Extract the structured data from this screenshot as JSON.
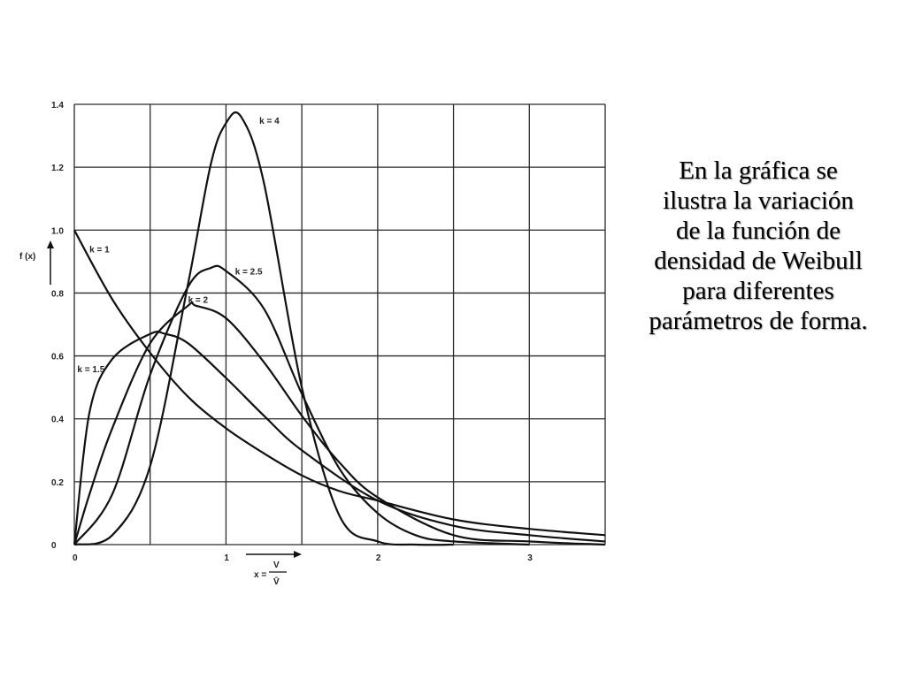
{
  "caption": "En la gráfica se ilustra la variación de la función de densidad de Weibull para diferentes parámetros de forma.",
  "chart_data": {
    "type": "line",
    "title": "",
    "ylabel": "f (x)",
    "xlabel_prefix": "x =",
    "xlabel_num": "V",
    "xlabel_den": "V̄",
    "xlim": [
      0,
      3.5
    ],
    "ylim": [
      0,
      1.4
    ],
    "x_ticks": [
      0,
      1,
      2,
      3
    ],
    "x_tick_labels": [
      "0",
      "1",
      "2",
      "3"
    ],
    "y_ticks": [
      0,
      0.2,
      0.4,
      0.6,
      0.8,
      1.0,
      1.2,
      1.4
    ],
    "y_tick_labels": [
      "0",
      "0.2",
      "0.4",
      "0.6",
      "0.8",
      "1.0",
      "1.2",
      "1.4"
    ],
    "grid": true,
    "series": [
      {
        "name": "k = 1",
        "x": [
          0,
          0.25,
          0.5,
          0.75,
          1.0,
          1.25,
          1.5,
          1.75,
          2.0,
          2.5,
          3.0,
          3.5
        ],
        "y": [
          1.0,
          0.78,
          0.61,
          0.47,
          0.37,
          0.29,
          0.22,
          0.17,
          0.14,
          0.08,
          0.05,
          0.03
        ]
      },
      {
        "name": "k = 1.5",
        "x": [
          0,
          0.1,
          0.25,
          0.5,
          0.6,
          0.75,
          1.0,
          1.25,
          1.5,
          2.0,
          2.5,
          3.0,
          3.5
        ],
        "y": [
          0,
          0.42,
          0.59,
          0.67,
          0.67,
          0.64,
          0.53,
          0.41,
          0.3,
          0.14,
          0.06,
          0.03,
          0.01
        ]
      },
      {
        "name": "k = 2",
        "x": [
          0,
          0.1,
          0.25,
          0.5,
          0.75,
          0.8,
          1.0,
          1.25,
          1.5,
          1.75,
          2.0,
          2.5,
          3.0,
          3.5
        ],
        "y": [
          0,
          0.16,
          0.37,
          0.64,
          0.76,
          0.76,
          0.72,
          0.58,
          0.41,
          0.26,
          0.15,
          0.03,
          0.01,
          0.0
        ]
      },
      {
        "name": "k = 2.5",
        "x": [
          0,
          0.25,
          0.5,
          0.75,
          0.9,
          1.0,
          1.25,
          1.5,
          1.75,
          2.0,
          2.25,
          2.5,
          3.0
        ],
        "y": [
          0,
          0.16,
          0.54,
          0.82,
          0.88,
          0.87,
          0.75,
          0.48,
          0.24,
          0.1,
          0.03,
          0.01,
          0.0
        ]
      },
      {
        "name": "k = 4",
        "x": [
          0,
          0.25,
          0.5,
          0.75,
          0.9,
          1.0,
          1.1,
          1.25,
          1.5,
          1.75,
          2.0,
          2.25,
          2.5
        ],
        "y": [
          0,
          0.03,
          0.25,
          0.83,
          1.21,
          1.34,
          1.36,
          1.15,
          0.5,
          0.09,
          0.01,
          0.0,
          0.0
        ]
      }
    ],
    "annotations": [
      {
        "text": "k = 4",
        "x": 1.22,
        "y": 1.35
      },
      {
        "text": "k = 2.5",
        "x": 1.06,
        "y": 0.87
      },
      {
        "text": "k = 2",
        "x": 0.75,
        "y": 0.78
      },
      {
        "text": "k = 1",
        "x": 0.1,
        "y": 0.94
      },
      {
        "text": "k = 1.5",
        "x": 0.02,
        "y": 0.56
      }
    ]
  }
}
